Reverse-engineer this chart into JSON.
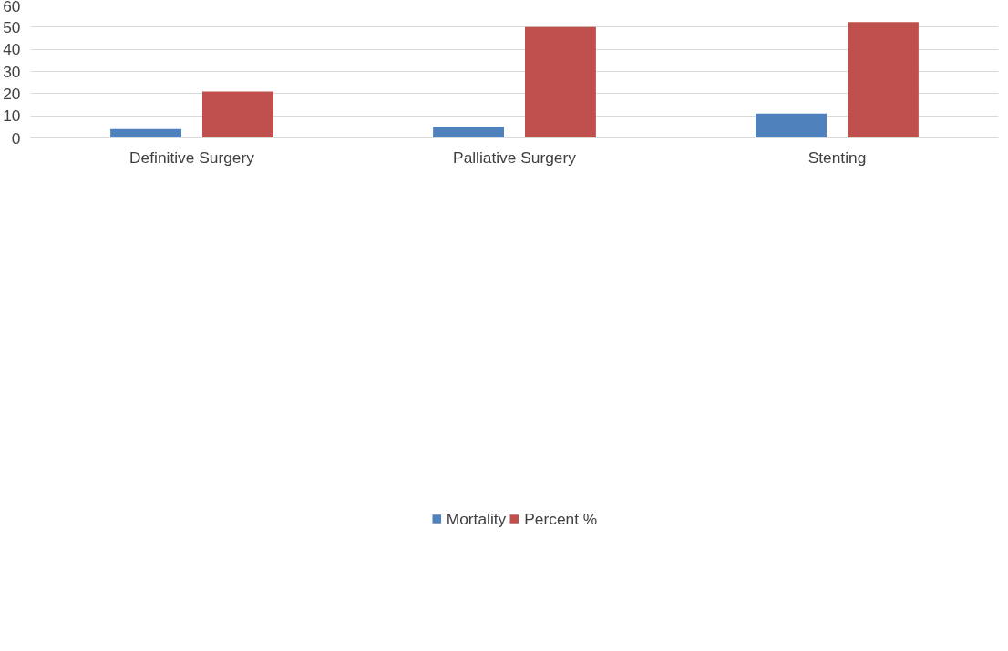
{
  "chart_data": {
    "type": "bar",
    "categories": [
      "Definitive Surgery",
      "Palliative Surgery",
      "Stenting"
    ],
    "series": [
      {
        "name": "Mortality",
        "color": "#4f81bd",
        "values": [
          4,
          5,
          11
        ]
      },
      {
        "name": "Percent %",
        "color": "#c0504d",
        "values": [
          21,
          50,
          52.3
        ]
      }
    ],
    "ylim": [
      0,
      60
    ],
    "yticks": [
      0,
      10,
      20,
      30,
      40,
      50,
      60
    ],
    "grid": "y",
    "legend": "bottom"
  }
}
